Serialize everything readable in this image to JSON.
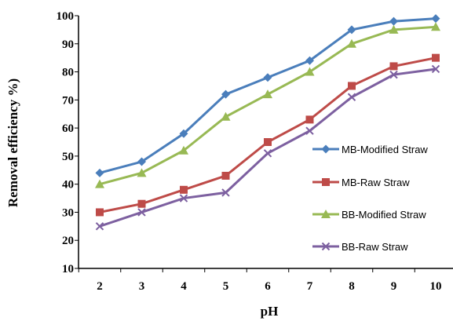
{
  "chart_data": {
    "type": "line",
    "title": "",
    "xlabel": "pH",
    "ylabel": "Removal efficiency %)",
    "x": [
      2,
      3,
      4,
      5,
      6,
      7,
      8,
      9,
      10
    ],
    "x_ticks": [
      "2",
      "3",
      "4",
      "5",
      "6",
      "7",
      "8",
      "9",
      "10"
    ],
    "ylim": [
      10,
      100
    ],
    "y_ticks": [
      "10",
      "20",
      "30",
      "40",
      "50",
      "60",
      "70",
      "80",
      "90",
      "100"
    ],
    "grid": false,
    "legend_position": "right",
    "series": [
      {
        "name": "MB-Modified Straw",
        "color": "#4a7ebb",
        "marker": "diamond",
        "values": [
          44,
          48,
          58,
          72,
          78,
          84,
          95,
          98,
          99
        ]
      },
      {
        "name": "MB-Raw Straw",
        "color": "#be4b48",
        "marker": "square",
        "values": [
          30,
          33,
          38,
          43,
          55,
          63,
          75,
          82,
          85
        ]
      },
      {
        "name": "BB-Modified Straw",
        "color": "#98b954",
        "marker": "triangle",
        "values": [
          40,
          44,
          52,
          64,
          72,
          80,
          90,
          95,
          96
        ]
      },
      {
        "name": "BB-Raw Straw",
        "color": "#7d60a0",
        "marker": "x",
        "values": [
          25,
          30,
          35,
          37,
          51,
          59,
          71,
          79,
          81
        ]
      }
    ]
  }
}
